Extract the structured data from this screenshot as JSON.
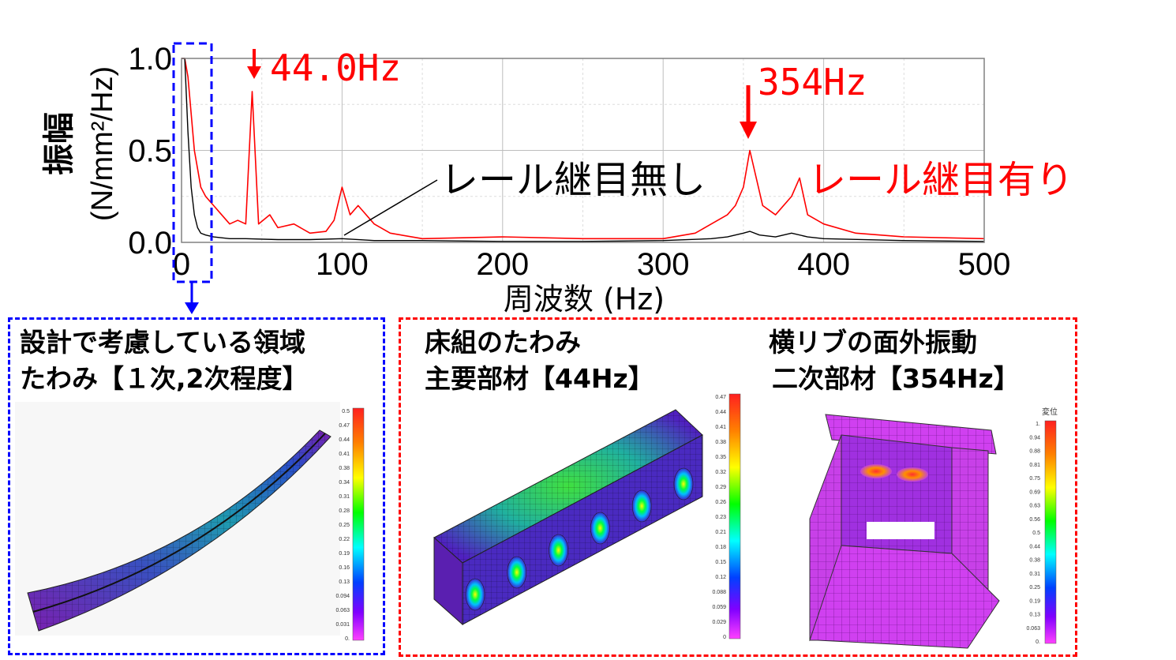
{
  "chart_data": {
    "type": "line",
    "xlabel": "周波数 (Hz)",
    "ylabel_main": "振幅",
    "ylabel_unit": "(N/mm²/Hz)",
    "xlim": [
      0,
      500
    ],
    "ylim": [
      0,
      1.0
    ],
    "x_ticks": [
      "0",
      "100",
      "200",
      "300",
      "400",
      "500"
    ],
    "y_ticks": [
      "0.0",
      "0.5",
      "1.0"
    ],
    "grid": true,
    "series": [
      {
        "name": "レール継目有り",
        "color": "#ff0000",
        "x": [
          0,
          2,
          4,
          6,
          8,
          10,
          12,
          15,
          20,
          25,
          30,
          35,
          40,
          44,
          48,
          55,
          60,
          70,
          80,
          90,
          95,
          100,
          105,
          110,
          120,
          130,
          150,
          200,
          250,
          300,
          320,
          330,
          340,
          345,
          350,
          354,
          358,
          362,
          370,
          380,
          385,
          390,
          400,
          420,
          450,
          500
        ],
        "y": [
          1.0,
          1.0,
          0.9,
          0.7,
          0.5,
          0.4,
          0.3,
          0.25,
          0.2,
          0.15,
          0.1,
          0.12,
          0.1,
          0.82,
          0.1,
          0.15,
          0.08,
          0.1,
          0.05,
          0.06,
          0.12,
          0.3,
          0.15,
          0.2,
          0.1,
          0.05,
          0.02,
          0.03,
          0.02,
          0.02,
          0.05,
          0.1,
          0.15,
          0.2,
          0.3,
          0.5,
          0.35,
          0.2,
          0.15,
          0.25,
          0.35,
          0.15,
          0.1,
          0.05,
          0.03,
          0.02
        ]
      },
      {
        "name": "レール継目無し",
        "color": "#000000",
        "x": [
          0,
          2,
          4,
          6,
          8,
          10,
          12,
          15,
          20,
          30,
          40,
          60,
          80,
          100,
          120,
          150,
          200,
          250,
          300,
          330,
          340,
          350,
          354,
          360,
          370,
          380,
          390,
          400,
          450,
          500
        ],
        "y": [
          1.0,
          1.0,
          0.6,
          0.3,
          0.15,
          0.08,
          0.05,
          0.04,
          0.03,
          0.02,
          0.02,
          0.015,
          0.015,
          0.02,
          0.01,
          0.01,
          0.005,
          0.005,
          0.01,
          0.02,
          0.03,
          0.05,
          0.06,
          0.04,
          0.03,
          0.05,
          0.03,
          0.02,
          0.01,
          0.005
        ]
      }
    ],
    "annotations": [
      {
        "text": "44.0Hz",
        "x": 44,
        "color": "#ff0000"
      },
      {
        "text": "354Hz",
        "x": 354,
        "color": "#ff0000"
      }
    ]
  },
  "series_labels": {
    "jointless": "レール継目無し",
    "jointed": "レール継目有り"
  },
  "panels": {
    "left": {
      "line1": "設計で考慮している領域",
      "line2": "たわみ【１次,2次程度】",
      "border_color": "#0000ff",
      "colorbar_ticks": [
        "0.5",
        "0.47",
        "0.44",
        "0.41",
        "0.38",
        "0.34",
        "0.31",
        "0.28",
        "0.25",
        "0.22",
        "0.19",
        "0.16",
        "0.13",
        "0.094",
        "0.063",
        "0.031",
        "0."
      ]
    },
    "middle": {
      "line1": "床組のたわみ",
      "line2": "主要部材【44Hz】",
      "colorbar_ticks": [
        "0.47",
        "0.44",
        "0.41",
        "0.38",
        "0.35",
        "0.32",
        "0.29",
        "0.26",
        "0.23",
        "0.21",
        "0.18",
        "0.15",
        "0.12",
        "0.088",
        "0.059",
        "0.029",
        "0"
      ]
    },
    "right": {
      "line1": "横リブの面外振動",
      "line2": "二次部材【354Hz】",
      "colorbar_title": "変位",
      "colorbar_ticks": [
        "1.",
        "0.94",
        "0.88",
        "0.81",
        "0.75",
        "0.69",
        "0.63",
        "0.56",
        "0.5",
        "0.44",
        "0.38",
        "0.31",
        "0.25",
        "0.19",
        "0.13",
        "0.063",
        "0."
      ]
    },
    "red_border_color": "#ff0000"
  }
}
